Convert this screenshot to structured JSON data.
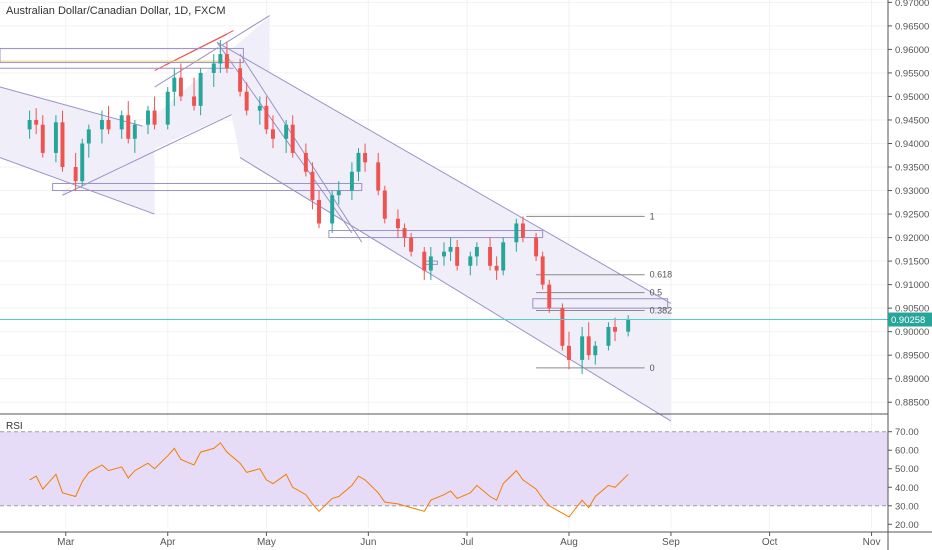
{
  "header": {
    "title": "Australian Dollar/Canadian Dollar, 1D, FXCM"
  },
  "colors": {
    "up": "#26a69a",
    "down": "#ef5350",
    "rsi_line": "#f57c00",
    "rsi_band": "#e6dcf7",
    "price_line": "#4dd0c4",
    "price_badge": "#26a69a",
    "channel_fill": "#f0eef8",
    "channel_line": "#9b91c7",
    "fib_line": "#8a8a8a",
    "axis_text": "#555555",
    "grid": "#f2f2f2"
  },
  "price_axis": {
    "ticks": [
      "0.97000",
      "0.96500",
      "0.96000",
      "0.95500",
      "0.95000",
      "0.94500",
      "0.94000",
      "0.93500",
      "0.93000",
      "0.92500",
      "0.92000",
      "0.91500",
      "0.91000",
      "0.90500",
      "0.90000",
      "0.89500",
      "0.89000",
      "0.88500"
    ],
    "current": "0.90258"
  },
  "rsi_panel": {
    "label": "RSI",
    "ticks": [
      "70.00",
      "60.00",
      "50.00",
      "40.00",
      "30.00",
      "20.00"
    ]
  },
  "time_axis": {
    "labels": [
      "Mar",
      "Apr",
      "May",
      "Jun",
      "Jul",
      "Aug",
      "Sep",
      "Oct",
      "Nov"
    ]
  },
  "fib_levels": [
    {
      "label": "1",
      "price": 0.9245
    },
    {
      "label": "0.618",
      "price": 0.9121
    },
    {
      "label": "0.5",
      "price": 0.9083
    },
    {
      "label": "0.382",
      "price": 0.9045
    },
    {
      "label": "0",
      "price": 0.8923
    }
  ],
  "chart_data": [
    {
      "type": "candlestick",
      "title": "Australian Dollar/Canadian Dollar, 1D, FXCM",
      "ylim": [
        0.8825,
        0.9705
      ],
      "x": [
        "2019-02-18",
        "2019-02-20",
        "2019-02-22",
        "2019-02-26",
        "2019-02-28",
        "2019-03-04",
        "2019-03-06",
        "2019-03-08",
        "2019-03-12",
        "2019-03-14",
        "2019-03-18",
        "2019-03-20",
        "2019-03-22",
        "2019-03-26",
        "2019-03-28",
        "2019-04-01",
        "2019-04-03",
        "2019-04-05",
        "2019-04-09",
        "2019-04-11",
        "2019-04-15",
        "2019-04-17",
        "2019-04-19",
        "2019-04-23",
        "2019-04-25",
        "2019-04-29",
        "2019-05-01",
        "2019-05-03",
        "2019-05-07",
        "2019-05-09",
        "2019-05-13",
        "2019-05-15",
        "2019-05-17",
        "2019-05-21",
        "2019-05-23",
        "2019-05-27",
        "2019-05-29",
        "2019-05-31",
        "2019-06-04",
        "2019-06-06",
        "2019-06-10",
        "2019-06-12",
        "2019-06-14",
        "2019-06-18",
        "2019-06-20",
        "2019-06-24",
        "2019-06-26",
        "2019-06-28",
        "2019-07-02",
        "2019-07-04",
        "2019-07-08",
        "2019-07-10",
        "2019-07-12",
        "2019-07-16",
        "2019-07-18",
        "2019-07-22",
        "2019-07-24",
        "2019-07-26",
        "2019-07-30",
        "2019-08-01",
        "2019-08-05",
        "2019-08-07",
        "2019-08-09",
        "2019-08-13",
        "2019-08-15",
        "2019-08-19"
      ],
      "ohlc": [
        [
          0.943,
          0.947,
          0.941,
          0.945
        ],
        [
          0.945,
          0.9475,
          0.942,
          0.944
        ],
        [
          0.944,
          0.946,
          0.937,
          0.938
        ],
        [
          0.938,
          0.946,
          0.936,
          0.9445
        ],
        [
          0.9445,
          0.947,
          0.934,
          0.935
        ],
        [
          0.935,
          0.938,
          0.93,
          0.932
        ],
        [
          0.932,
          0.941,
          0.931,
          0.94
        ],
        [
          0.94,
          0.944,
          0.937,
          0.943
        ],
        [
          0.943,
          0.947,
          0.94,
          0.945
        ],
        [
          0.945,
          0.948,
          0.942,
          0.943
        ],
        [
          0.943,
          0.947,
          0.941,
          0.946
        ],
        [
          0.946,
          0.949,
          0.94,
          0.941
        ],
        [
          0.941,
          0.945,
          0.938,
          0.944
        ],
        [
          0.944,
          0.948,
          0.942,
          0.947
        ],
        [
          0.947,
          0.95,
          0.943,
          0.944
        ],
        [
          0.944,
          0.952,
          0.943,
          0.951
        ],
        [
          0.951,
          0.956,
          0.948,
          0.954
        ],
        [
          0.954,
          0.957,
          0.949,
          0.95
        ],
        [
          0.95,
          0.954,
          0.947,
          0.948
        ],
        [
          0.948,
          0.956,
          0.946,
          0.955
        ],
        [
          0.955,
          0.959,
          0.952,
          0.957
        ],
        [
          0.957,
          0.962,
          0.955,
          0.959
        ],
        [
          0.959,
          0.9615,
          0.955,
          0.956
        ],
        [
          0.956,
          0.958,
          0.95,
          0.951
        ],
        [
          0.951,
          0.953,
          0.946,
          0.947
        ],
        [
          0.947,
          0.95,
          0.944,
          0.948
        ],
        [
          0.948,
          0.95,
          0.942,
          0.943
        ],
        [
          0.943,
          0.946,
          0.939,
          0.941
        ],
        [
          0.941,
          0.945,
          0.938,
          0.944
        ],
        [
          0.944,
          0.946,
          0.937,
          0.938
        ],
        [
          0.938,
          0.94,
          0.933,
          0.934
        ],
        [
          0.934,
          0.936,
          0.926,
          0.928
        ],
        [
          0.928,
          0.93,
          0.922,
          0.923
        ],
        [
          0.923,
          0.93,
          0.921,
          0.929
        ],
        [
          0.929,
          0.932,
          0.927,
          0.93
        ],
        [
          0.93,
          0.936,
          0.928,
          0.934
        ],
        [
          0.934,
          0.939,
          0.932,
          0.938
        ],
        [
          0.938,
          0.94,
          0.934,
          0.936
        ],
        [
          0.936,
          0.938,
          0.929,
          0.93
        ],
        [
          0.93,
          0.931,
          0.923,
          0.924
        ],
        [
          0.924,
          0.926,
          0.92,
          0.922
        ],
        [
          0.922,
          0.923,
          0.918,
          0.92
        ],
        [
          0.92,
          0.921,
          0.916,
          0.917
        ],
        [
          0.917,
          0.918,
          0.911,
          0.913
        ],
        [
          0.913,
          0.918,
          0.911,
          0.916
        ],
        [
          0.916,
          0.919,
          0.914,
          0.917
        ],
        [
          0.917,
          0.92,
          0.915,
          0.918
        ],
        [
          0.918,
          0.9195,
          0.913,
          0.914
        ],
        [
          0.914,
          0.917,
          0.912,
          0.916
        ],
        [
          0.916,
          0.919,
          0.914,
          0.918
        ],
        [
          0.918,
          0.92,
          0.913,
          0.914
        ],
        [
          0.914,
          0.916,
          0.911,
          0.913
        ],
        [
          0.913,
          0.92,
          0.912,
          0.919
        ],
        [
          0.919,
          0.924,
          0.917,
          0.923
        ],
        [
          0.923,
          0.9245,
          0.919,
          0.92
        ],
        [
          0.92,
          0.921,
          0.915,
          0.916
        ],
        [
          0.916,
          0.917,
          0.909,
          0.91
        ],
        [
          0.91,
          0.911,
          0.904,
          0.905
        ],
        [
          0.905,
          0.906,
          0.896,
          0.897
        ],
        [
          0.897,
          0.9,
          0.892,
          0.894
        ],
        [
          0.894,
          0.901,
          0.891,
          0.899
        ],
        [
          0.899,
          0.902,
          0.894,
          0.895
        ],
        [
          0.895,
          0.898,
          0.893,
          0.897
        ],
        [
          0.897,
          0.902,
          0.896,
          0.901
        ],
        [
          0.901,
          0.903,
          0.898,
          0.9
        ],
        [
          0.9,
          0.9035,
          0.899,
          0.9026
        ]
      ]
    },
    {
      "type": "line",
      "title": "RSI",
      "ylim": [
        18,
        72
      ],
      "y": [
        44,
        46,
        39,
        47,
        37,
        35,
        43,
        48,
        52,
        49,
        51,
        45,
        49,
        53,
        50,
        57,
        61,
        55,
        52,
        59,
        61,
        64,
        59,
        53,
        48,
        50,
        44,
        42,
        47,
        40,
        36,
        31,
        27,
        34,
        35,
        41,
        46,
        44,
        37,
        32,
        31,
        30,
        29,
        27,
        33,
        36,
        38,
        34,
        37,
        41,
        35,
        33,
        42,
        49,
        44,
        39,
        34,
        30,
        26,
        24,
        33,
        29,
        35,
        41,
        40,
        47
      ]
    }
  ]
}
